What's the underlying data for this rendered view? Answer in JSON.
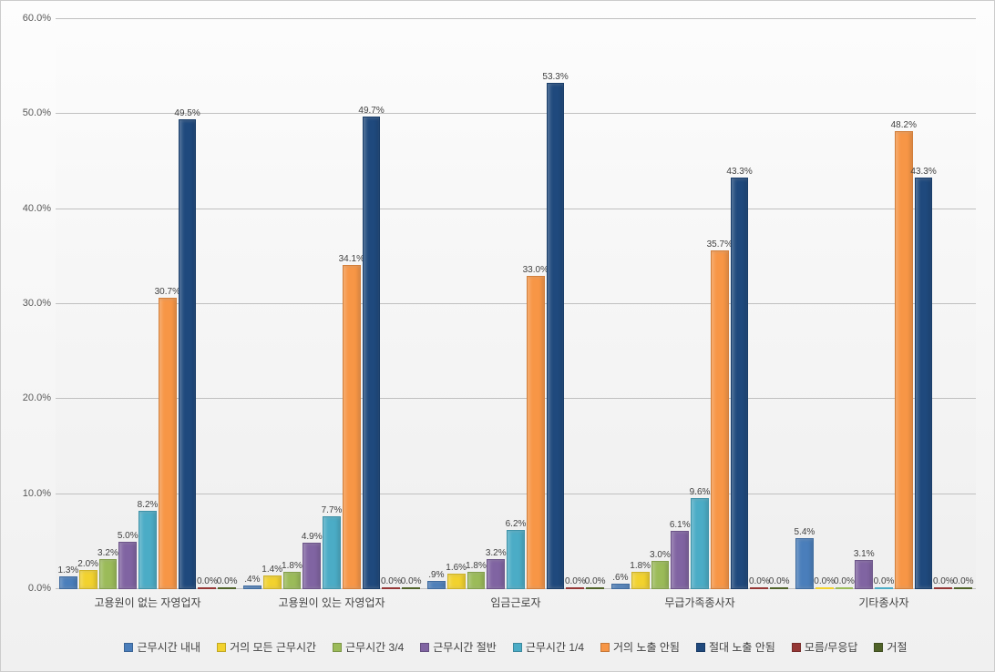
{
  "chart": {
    "type": "bar",
    "ylim": [
      0,
      60
    ],
    "ytick_step": 10,
    "ytick_format_suffix": ".0%",
    "background_color": "#f2f2f2",
    "grid_color": "#c0c0c0",
    "label_fontsize": 11,
    "series": [
      {
        "name": "근무시간 내내",
        "color": "#4a7ebb"
      },
      {
        "name": "거의 모든 근무시간",
        "color": "#f2d22e"
      },
      {
        "name": "근무시간 3/4",
        "color": "#9bbb59"
      },
      {
        "name": "근무시간 절반",
        "color": "#8064a2"
      },
      {
        "name": "근무시간 1/4",
        "color": "#4bacc6"
      },
      {
        "name": "거의 노출 안됨",
        "color": "#f79646"
      },
      {
        "name": "절대 노출 안됨",
        "color": "#1f497d"
      },
      {
        "name": "모름/무응답",
        "color": "#953735"
      },
      {
        "name": "거절",
        "color": "#4f6228"
      }
    ],
    "categories": [
      {
        "label": "고용원이 없는 자영업자",
        "values": [
          1.3,
          2.0,
          3.2,
          5.0,
          8.2,
          30.7,
          49.5,
          0.0,
          0.0
        ]
      },
      {
        "label": "고용원이 있는 자영업자",
        "values": [
          0.4,
          1.4,
          1.8,
          4.9,
          7.7,
          34.1,
          49.7,
          0.0,
          0.0
        ]
      },
      {
        "label": "임금근로자",
        "values": [
          0.9,
          1.6,
          1.8,
          3.2,
          6.2,
          33.0,
          53.3,
          0.0,
          0.0
        ]
      },
      {
        "label": "무급가족종사자",
        "values": [
          0.6,
          1.8,
          3.0,
          6.1,
          9.6,
          35.7,
          43.3,
          0.0,
          0.0
        ]
      },
      {
        "label": "기타종사자",
        "values": [
          5.4,
          0.0,
          0.0,
          3.1,
          0.0,
          48.2,
          43.3,
          0.0,
          0.0
        ]
      }
    ]
  }
}
